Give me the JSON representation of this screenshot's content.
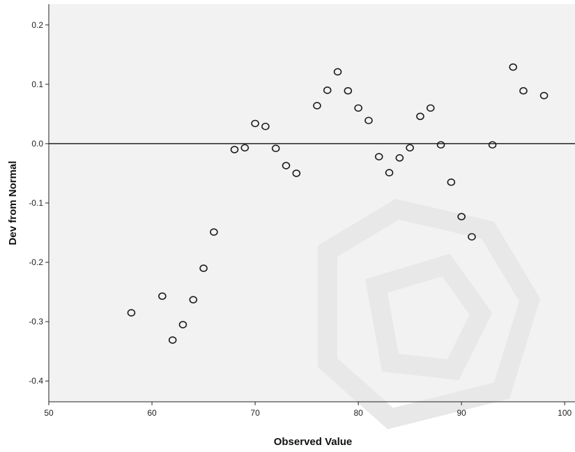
{
  "chart_data": {
    "type": "scatter",
    "title": "",
    "xlabel": "Observed Value",
    "ylabel": "Dev from Normal",
    "xlim": [
      50,
      101
    ],
    "ylim": [
      -0.435,
      0.235
    ],
    "x_ticks": [
      50,
      60,
      70,
      80,
      90,
      100
    ],
    "x_tick_labels": [
      "50",
      "60",
      "70",
      "80",
      "90",
      "100"
    ],
    "y_ticks": [
      0.2,
      0.1,
      0.0,
      -0.1,
      -0.2,
      -0.3,
      -0.4
    ],
    "y_tick_labels": [
      "0.2",
      "0.1",
      "0.0",
      "-0.1",
      "-0.2",
      "-0.3",
      "-0.4"
    ],
    "reference_line_y": 0.0,
    "grid": false,
    "plot_background": "#f2f2f2",
    "marker": "open-circle",
    "marker_color": "#1a1a1a",
    "points": [
      {
        "x": 58.0,
        "y": -0.285
      },
      {
        "x": 61.0,
        "y": -0.257
      },
      {
        "x": 62.0,
        "y": -0.331
      },
      {
        "x": 63.0,
        "y": -0.305
      },
      {
        "x": 64.0,
        "y": -0.263
      },
      {
        "x": 65.0,
        "y": -0.21
      },
      {
        "x": 66.0,
        "y": -0.149
      },
      {
        "x": 68.0,
        "y": -0.01
      },
      {
        "x": 69.0,
        "y": -0.007
      },
      {
        "x": 70.0,
        "y": 0.034
      },
      {
        "x": 71.0,
        "y": 0.029
      },
      {
        "x": 72.0,
        "y": -0.008
      },
      {
        "x": 73.0,
        "y": -0.037
      },
      {
        "x": 74.0,
        "y": -0.05
      },
      {
        "x": 76.0,
        "y": 0.064
      },
      {
        "x": 77.0,
        "y": 0.09
      },
      {
        "x": 78.0,
        "y": 0.121
      },
      {
        "x": 79.0,
        "y": 0.089
      },
      {
        "x": 80.0,
        "y": 0.06
      },
      {
        "x": 81.0,
        "y": 0.039
      },
      {
        "x": 82.0,
        "y": -0.022
      },
      {
        "x": 83.0,
        "y": -0.049
      },
      {
        "x": 84.0,
        "y": -0.024
      },
      {
        "x": 85.0,
        "y": -0.007
      },
      {
        "x": 86.0,
        "y": 0.046
      },
      {
        "x": 87.0,
        "y": 0.06
      },
      {
        "x": 88.0,
        "y": -0.002
      },
      {
        "x": 89.0,
        "y": -0.065
      },
      {
        "x": 90.0,
        "y": -0.123
      },
      {
        "x": 91.0,
        "y": -0.157
      },
      {
        "x": 93.0,
        "y": -0.002
      },
      {
        "x": 95.0,
        "y": 0.129
      },
      {
        "x": 96.0,
        "y": 0.089
      },
      {
        "x": 98.0,
        "y": 0.081
      }
    ]
  }
}
